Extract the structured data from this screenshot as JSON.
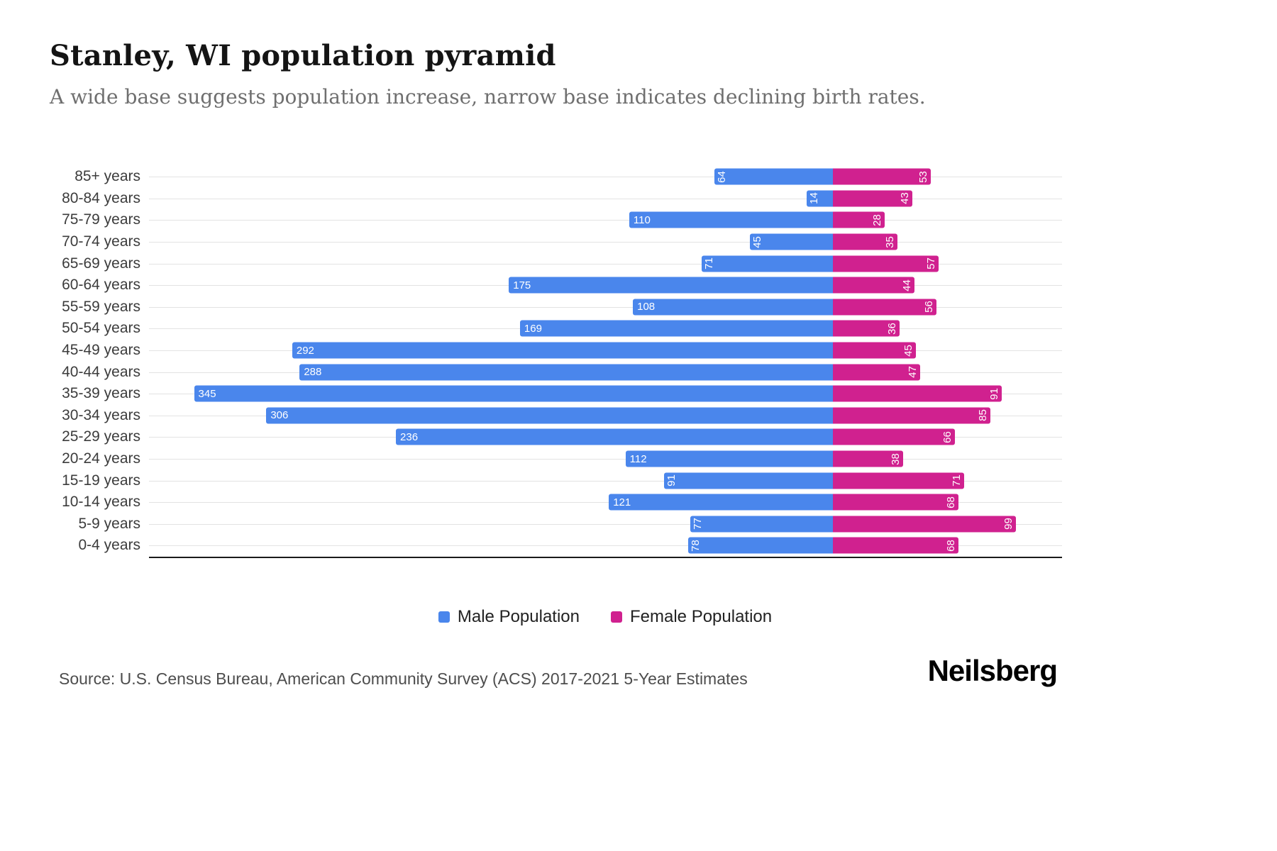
{
  "header": {
    "title": "Stanley, WI population pyramid",
    "subtitle": "A wide base suggests population increase, narrow base indicates declining birth rates."
  },
  "legend": {
    "male_label": "Male Population",
    "female_label": "Female Population"
  },
  "footer": {
    "source": "Source: U.S. Census Bureau, American Community Survey (ACS) 2017-2021 5-Year Estimates",
    "logo": "Neilsberg"
  },
  "colors": {
    "male": "#4a86ec",
    "female": "#d0218f",
    "gridline": "#e3e3e3",
    "axis": "#1a1a1a"
  },
  "chart_data": {
    "type": "bar",
    "variant": "population-pyramid",
    "orientation": "horizontal",
    "title": "Stanley, WI population pyramid",
    "subtitle": "A wide base suggests population increase, narrow base indicates declining birth rates.",
    "categories": [
      "85+ years",
      "80-84 years",
      "75-79 years",
      "70-74 years",
      "65-69 years",
      "60-64 years",
      "55-59 years",
      "50-54 years",
      "45-49 years",
      "40-44 years",
      "35-39 years",
      "30-34 years",
      "25-29 years",
      "20-24 years",
      "15-19 years",
      "10-14 years",
      "5-9 years",
      "0-4 years"
    ],
    "series": [
      {
        "name": "Male Population",
        "color": "#4a86ec",
        "direction": "left",
        "values": [
          64,
          14,
          110,
          45,
          71,
          175,
          108,
          169,
          292,
          288,
          345,
          306,
          236,
          112,
          91,
          121,
          77,
          78
        ]
      },
      {
        "name": "Female Population",
        "color": "#d0218f",
        "direction": "right",
        "values": [
          53,
          43,
          28,
          35,
          57,
          44,
          56,
          36,
          45,
          47,
          91,
          85,
          66,
          38,
          71,
          68,
          99,
          68
        ]
      }
    ],
    "value_labels": "inside-outer-end-of-bar",
    "legend_position": "bottom-center",
    "grid": true,
    "xlabel": "",
    "ylabel": ""
  }
}
